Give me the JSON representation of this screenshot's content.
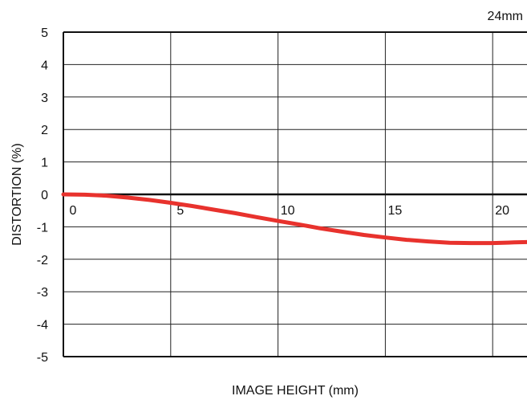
{
  "chart_data": {
    "type": "line",
    "title": "24mm",
    "xlabel": "IMAGE HEIGHT (mm)",
    "ylabel": "DISTORTION (%)",
    "xlim": [
      0,
      21.6
    ],
    "ylim": [
      -5,
      5
    ],
    "xticks": [
      "0",
      "5",
      "10",
      "15",
      "20"
    ],
    "yticks": [
      "5",
      "4",
      "3",
      "2",
      "1",
      "0",
      "-1",
      "-2",
      "-3",
      "-4",
      "-5"
    ],
    "grid": true,
    "series": [
      {
        "color": "#e8322d",
        "x": [
          0,
          1,
          2,
          3,
          4,
          5,
          6,
          7,
          8,
          9,
          10,
          11,
          12,
          13,
          14,
          15,
          16,
          17,
          18,
          19,
          20,
          21,
          21.6
        ],
        "y": [
          0,
          -0.01,
          -0.04,
          -0.1,
          -0.17,
          -0.26,
          -0.36,
          -0.47,
          -0.58,
          -0.7,
          -0.82,
          -0.93,
          -1.05,
          -1.15,
          -1.25,
          -1.33,
          -1.4,
          -1.45,
          -1.49,
          -1.5,
          -1.5,
          -1.48,
          -1.47
        ]
      }
    ]
  }
}
